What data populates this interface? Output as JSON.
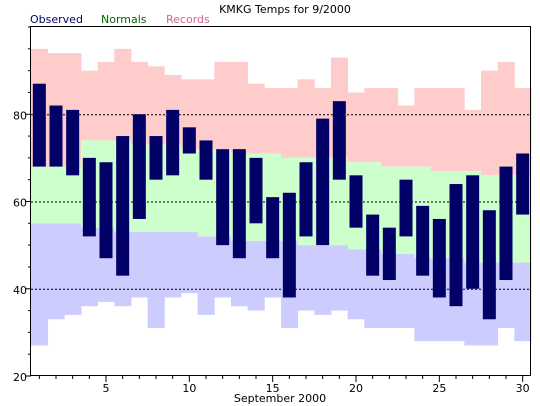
{
  "chart_data": {
    "type": "bar",
    "title": "KMKG Temps for 9/2000",
    "xlabel": "September 2000",
    "ylabel": "",
    "xlim": [
      0.5,
      30.5
    ],
    "ylim": [
      20,
      100
    ],
    "grid": true,
    "legend_position": "top",
    "x_ticks": [
      5,
      10,
      15,
      20,
      25,
      30
    ],
    "y_ticks": [
      20,
      40,
      60,
      80
    ],
    "y_gridlines": [
      40,
      60,
      80
    ],
    "legend": [
      {
        "name": "Observed",
        "color": "#000066"
      },
      {
        "name": "Normals",
        "color": "#006600"
      },
      {
        "name": "Records",
        "color": "#cc6699"
      }
    ],
    "days": [
      1,
      2,
      3,
      4,
      5,
      6,
      7,
      8,
      9,
      10,
      11,
      12,
      13,
      14,
      15,
      16,
      17,
      18,
      19,
      20,
      21,
      22,
      23,
      24,
      25,
      26,
      27,
      28,
      29,
      30
    ],
    "series": [
      {
        "name": "Observed",
        "kind": "range",
        "color": "#000066",
        "high": [
          87,
          82,
          81,
          70,
          69,
          75,
          80,
          75,
          81,
          77,
          74,
          72,
          72,
          70,
          61,
          62,
          69,
          79,
          83,
          66,
          57,
          54,
          65,
          59,
          56,
          64,
          66,
          58,
          68,
          71
        ],
        "low": [
          68,
          68,
          66,
          52,
          47,
          43,
          56,
          65,
          66,
          71,
          65,
          50,
          47,
          55,
          47,
          38,
          52,
          50,
          65,
          54,
          43,
          42,
          52,
          43,
          38,
          36,
          40,
          33,
          42,
          57
        ]
      },
      {
        "name": "Records",
        "kind": "range",
        "color": "#ffcccc",
        "high": [
          95,
          94,
          94,
          90,
          92,
          95,
          92,
          91,
          89,
          88,
          88,
          92,
          92,
          87,
          86,
          86,
          88,
          86,
          93,
          85,
          86,
          86,
          82,
          86,
          86,
          86,
          81,
          90,
          92,
          86
        ],
        "low": [
          27,
          33,
          34,
          36,
          37,
          36,
          38,
          31,
          38,
          39,
          34,
          38,
          36,
          35,
          38,
          31,
          35,
          34,
          35,
          33,
          31,
          31,
          31,
          28,
          28,
          28,
          27,
          27,
          31,
          28
        ]
      },
      {
        "name": "Normals",
        "kind": "range",
        "color": "#ccffcc",
        "high": [
          68,
          68,
          68,
          74,
          74,
          74,
          73,
          73,
          73,
          72,
          72,
          72,
          71,
          71,
          71,
          70,
          70,
          70,
          70,
          69,
          69,
          68,
          68,
          68,
          67,
          67,
          67,
          66,
          66,
          66
        ],
        "low": [
          55,
          55,
          55,
          54,
          54,
          53,
          53,
          53,
          53,
          53,
          52,
          52,
          51,
          51,
          51,
          51,
          50,
          50,
          50,
          49,
          49,
          48,
          48,
          47,
          47,
          47,
          46,
          46,
          46,
          46
        ]
      }
    ],
    "record_lows_color": "#ccccff"
  }
}
